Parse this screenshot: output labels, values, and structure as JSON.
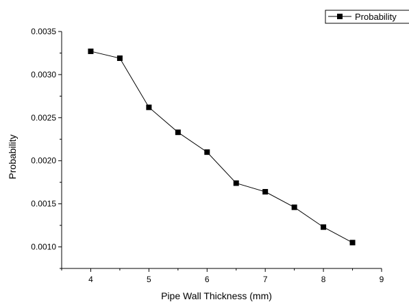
{
  "chart_data": {
    "type": "line",
    "title": "",
    "xlabel": "Pipe Wall Thickness (mm)",
    "ylabel": "Probability",
    "xlim": [
      3.5,
      9.0
    ],
    "ylim": [
      0.00075,
      0.0035
    ],
    "x_ticks": [
      {
        "value": 4,
        "label": "4"
      },
      {
        "value": 5,
        "label": "5"
      },
      {
        "value": 6,
        "label": "6"
      },
      {
        "value": 7,
        "label": "7"
      },
      {
        "value": 8,
        "label": "8"
      },
      {
        "value": 9,
        "label": "9"
      }
    ],
    "y_ticks": [
      {
        "value": 0.001,
        "label": "0.0010"
      },
      {
        "value": 0.0015,
        "label": "0.0015"
      },
      {
        "value": 0.002,
        "label": "0.0020"
      },
      {
        "value": 0.0025,
        "label": "0.0025"
      },
      {
        "value": 0.003,
        "label": "0.0030"
      },
      {
        "value": 0.0035,
        "label": "0.0035"
      }
    ],
    "grid": false,
    "legend_position": "top-right",
    "series": [
      {
        "name": "Probability",
        "marker": "square",
        "color": "#000000",
        "x": [
          4.0,
          4.5,
          5.0,
          5.5,
          6.0,
          6.5,
          7.0,
          7.5,
          8.0,
          8.5
        ],
        "y": [
          0.00327,
          0.00319,
          0.00262,
          0.00233,
          0.0021,
          0.00174,
          0.00164,
          0.00146,
          0.00123,
          0.00105
        ]
      }
    ]
  }
}
